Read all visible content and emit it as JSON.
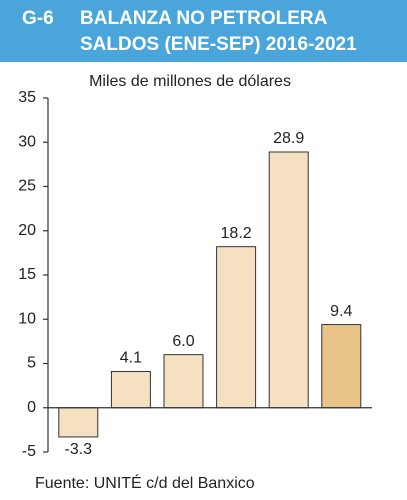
{
  "chart_data": {
    "type": "bar",
    "label": "G-6",
    "title": [
      "BALANZA NO PETROLERA",
      "SALDOS (ENE-SEP) 2016-2021"
    ],
    "subtitle": "Miles de millones de dólares",
    "source": "Fuente: UNITÉ c/d del Banxico",
    "categories": [
      null,
      null,
      null,
      null,
      null,
      null
    ],
    "values": [
      -3.3,
      4.1,
      6.0,
      18.2,
      28.9,
      9.4
    ],
    "value_labels": [
      "-3.3",
      "4.1",
      "6.0",
      "18.2",
      "28.9",
      "9.4"
    ],
    "colors": [
      "#f6e0c2",
      "#f6e0c2",
      "#f6e0c2",
      "#f6e0c2",
      "#f6e0c2",
      "#e9c488"
    ],
    "ylim": [
      -5,
      35
    ],
    "yticks": [
      -5,
      0,
      5,
      10,
      15,
      20,
      25,
      30,
      35
    ],
    "grid": false
  }
}
